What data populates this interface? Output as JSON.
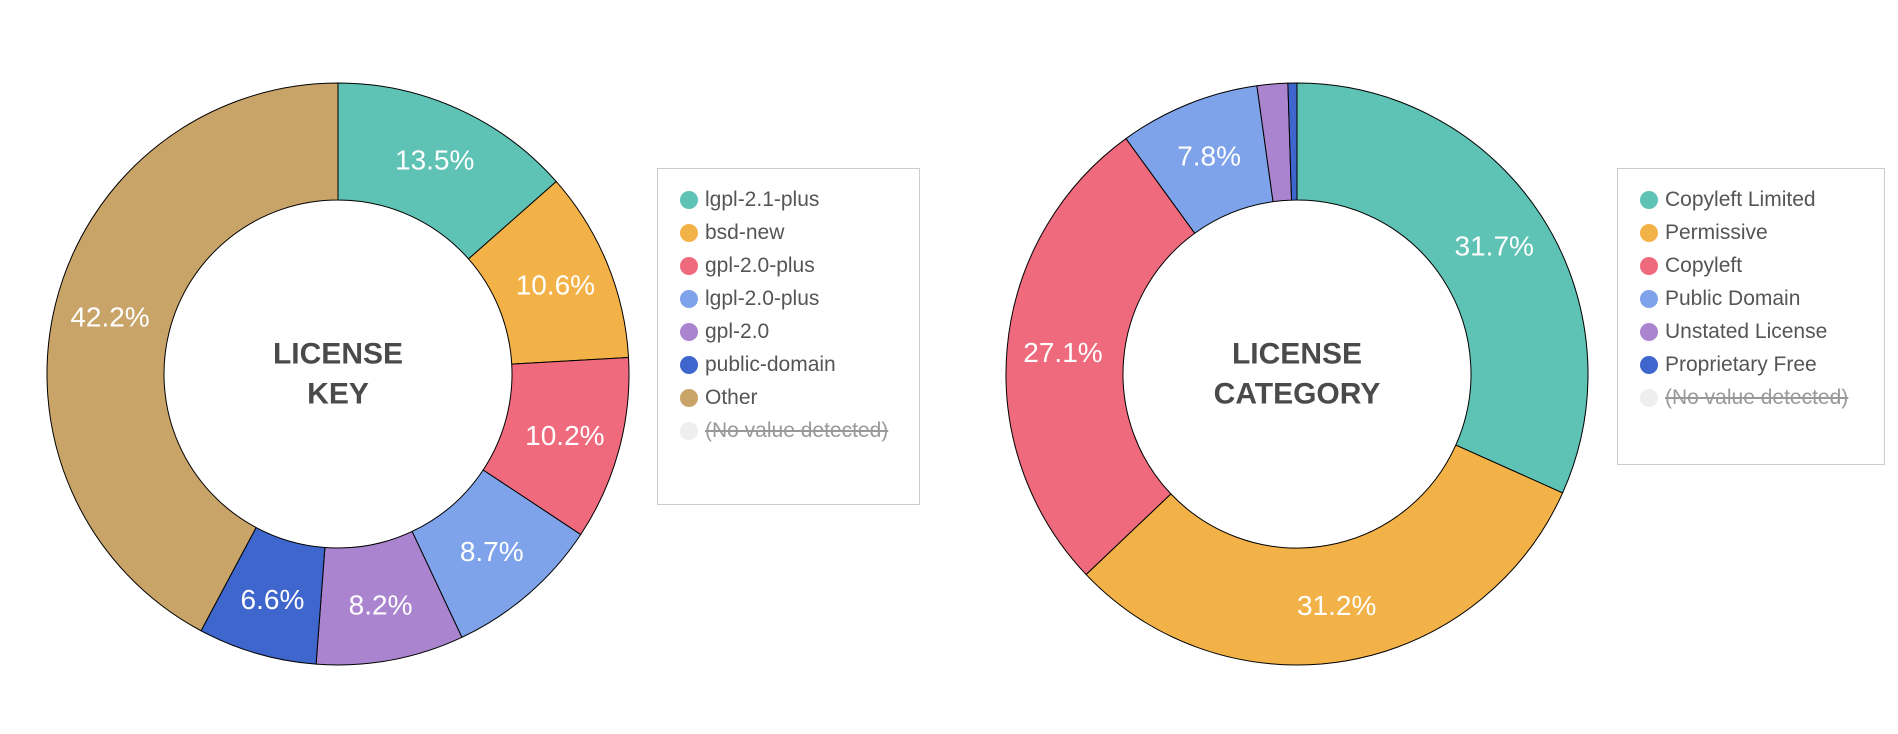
{
  "chart_data": [
    {
      "type": "pie",
      "title": "LICENSE KEY",
      "title_lines": [
        "LICENSE",
        "KEY"
      ],
      "legend_position": "right",
      "segments": [
        {
          "name": "lgpl-2.1-plus",
          "value": 13.5,
          "label": "13.5%",
          "color": "#5ec2b4"
        },
        {
          "name": "bsd-new",
          "value": 10.6,
          "label": "10.6%",
          "color": "#f3b248"
        },
        {
          "name": "gpl-2.0-plus",
          "value": 10.2,
          "label": "10.2%",
          "color": "#ee6a7c"
        },
        {
          "name": "lgpl-2.0-plus",
          "value": 8.7,
          "label": "8.7%",
          "color": "#7ea3ea"
        },
        {
          "name": "gpl-2.0",
          "value": 8.2,
          "label": "8.2%",
          "color": "#aa84ce"
        },
        {
          "name": "public-domain",
          "value": 6.6,
          "label": "6.6%",
          "color": "#3f66cc"
        },
        {
          "name": "Other",
          "value": 42.2,
          "label": "42.2%",
          "color": "#c9a468"
        }
      ],
      "legend": [
        {
          "name": "lgpl-2.1-plus",
          "color": "#5ec2b4",
          "disabled": false
        },
        {
          "name": "bsd-new",
          "color": "#f3b248",
          "disabled": false
        },
        {
          "name": "gpl-2.0-plus",
          "color": "#ee6a7c",
          "disabled": false
        },
        {
          "name": "lgpl-2.0-plus",
          "color": "#7ea3ea",
          "disabled": false
        },
        {
          "name": "gpl-2.0",
          "color": "#aa84ce",
          "disabled": false
        },
        {
          "name": "public-domain",
          "color": "#3f66cc",
          "disabled": false
        },
        {
          "name": "Other",
          "color": "#c9a468",
          "disabled": false
        },
        {
          "name": "(No value detected)",
          "color": "#eeeeee",
          "disabled": true
        }
      ]
    },
    {
      "type": "pie",
      "title": "LICENSE CATEGORY",
      "title_lines": [
        "LICENSE",
        "CATEGORY"
      ],
      "legend_position": "right",
      "segments": [
        {
          "name": "Copyleft Limited",
          "value": 31.7,
          "label": "31.7%",
          "color": "#5ec2b4"
        },
        {
          "name": "Permissive",
          "value": 31.2,
          "label": "31.2%",
          "color": "#f3b248"
        },
        {
          "name": "Copyleft",
          "value": 27.1,
          "label": "27.1%",
          "color": "#ee6a7c"
        },
        {
          "name": "Public Domain",
          "value": 7.8,
          "label": "7.8%",
          "color": "#7ea3ea"
        },
        {
          "name": "Unstated License",
          "value": 1.7,
          "label": "",
          "color": "#aa84ce"
        },
        {
          "name": "Proprietary Free",
          "value": 0.5,
          "label": "",
          "color": "#3f66cc"
        }
      ],
      "legend": [
        {
          "name": "Copyleft Limited",
          "color": "#5ec2b4",
          "disabled": false
        },
        {
          "name": "Permissive",
          "color": "#f3b248",
          "disabled": false
        },
        {
          "name": "Copyleft",
          "color": "#ee6a7c",
          "disabled": false
        },
        {
          "name": "Public Domain",
          "color": "#7ea3ea",
          "disabled": false
        },
        {
          "name": "Unstated License",
          "color": "#aa84ce",
          "disabled": false
        },
        {
          "name": "Proprietary Free",
          "color": "#3f66cc",
          "disabled": false
        },
        {
          "name": "(No value detected)",
          "color": "#eeeeee",
          "disabled": true
        }
      ]
    }
  ]
}
